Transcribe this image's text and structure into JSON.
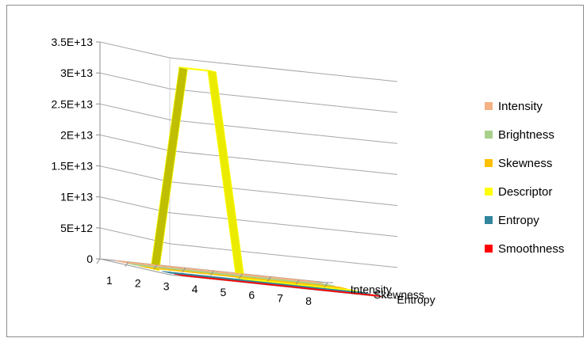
{
  "chart_data": {
    "type": "line",
    "style": "3d-line",
    "categories": [
      "1",
      "2",
      "3",
      "4",
      "5",
      "6",
      "7",
      "8"
    ],
    "depth_labels": [
      "Intensity",
      "Skewness",
      "Entropy"
    ],
    "y_ticks": [
      "0",
      "5E+12",
      "1E+13",
      "1.5E+13",
      "2E+13",
      "2.5E+13",
      "3E+13",
      "3.5E+13"
    ],
    "ylim": [
      0,
      35000000000000
    ],
    "grid": true,
    "legend_position": "right",
    "series": [
      {
        "name": "Intensity",
        "color": "#f4b183",
        "values": [
          0,
          0,
          0,
          0,
          0,
          0,
          0,
          0
        ]
      },
      {
        "name": "Brightness",
        "color": "#a9d18e",
        "values": [
          0,
          0,
          0,
          0,
          0,
          0,
          0,
          0
        ]
      },
      {
        "name": "Skewness",
        "color": "#ffc000",
        "values": [
          0,
          0,
          0,
          0,
          0,
          0,
          0,
          0
        ]
      },
      {
        "name": "Descriptor",
        "color": "#ffff00",
        "values": [
          0,
          33000000000000,
          33000000000000,
          0,
          0,
          0,
          0,
          0
        ]
      },
      {
        "name": "Entropy",
        "color": "#31859c",
        "values": [
          0,
          0,
          0,
          0,
          0,
          0,
          0,
          0
        ]
      },
      {
        "name": "Smoothness",
        "color": "#ff0000",
        "values": [
          0,
          0,
          0,
          0,
          0,
          0,
          0,
          0
        ]
      }
    ]
  }
}
